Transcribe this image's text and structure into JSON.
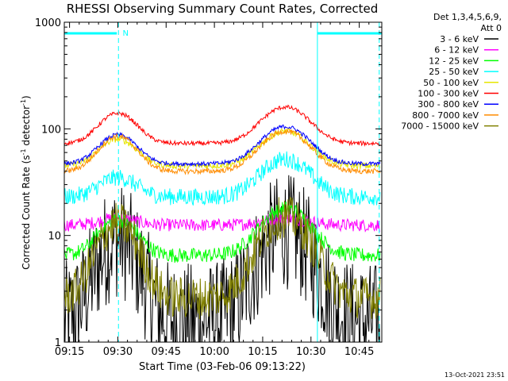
{
  "chart_data": {
    "type": "line",
    "title": "RHESSI Observing Summary Count Rates, Corrected",
    "xlabel": "Start Time (03-Feb-06 09:13:22)",
    "ylabel_main": "Corrected Count Rate (s",
    "ylabel_sup1": "-1",
    "ylabel_mid": " detector",
    "ylabel_sup2": "-1",
    "ylabel_end": ")",
    "yscale": "log",
    "ylim": [
      1,
      1000
    ],
    "xlim": [
      "09:13:22",
      "10:52:00"
    ],
    "x_ticks": [
      "09:15",
      "09:30",
      "09:45",
      "10:00",
      "10:15",
      "10:30",
      "10:45"
    ],
    "x_tick_minutes": [
      15,
      30,
      45,
      60,
      75,
      90,
      105
    ],
    "x_start_minute": 13.37,
    "x_end_minute": 112.0,
    "y_ticks": [
      {
        "value": 1,
        "label": "1"
      },
      {
        "value": 10,
        "label": "10"
      },
      {
        "value": 100,
        "label": "100"
      },
      {
        "value": 1000,
        "label": "1000"
      }
    ],
    "legend_header": [
      "Det 1,3,4,5,6,9,",
      "Att 0"
    ],
    "legend_placement": "right",
    "markers": {
      "night_bars": [
        {
          "start_minute": 13.37,
          "end_minute": 29.7
        },
        {
          "start_minute": 92.0,
          "end_minute": 112.0
        }
      ],
      "vlines_dashed": [
        30.2,
        111.2
      ],
      "vlines_solid": [
        13.37,
        92.0
      ],
      "labels": [
        {
          "text": "N",
          "minute": 31.5
        }
      ]
    },
    "series": [
      {
        "name": "3 - 6 keV",
        "color": "#000000",
        "base": 1.6,
        "peak1": 9,
        "peak2": 11,
        "noise": 0.55
      },
      {
        "name": "6 - 12 keV",
        "color": "#ff00ff",
        "base": 12.5,
        "peak1": 14.5,
        "peak2": 14.5,
        "noise": 0.06
      },
      {
        "name": "12 - 25 keV",
        "color": "#00ff00",
        "base": 6.5,
        "peak1": 14,
        "peak2": 18,
        "noise": 0.07
      },
      {
        "name": "25 - 50 keV",
        "color": "#00ffff",
        "base": 23,
        "peak1": 35,
        "peak2": 52,
        "noise": 0.08
      },
      {
        "name": "50 - 100 keV",
        "color": "#e6e600",
        "base": 45,
        "peak1": 80,
        "peak2": 95,
        "noise": 0.03
      },
      {
        "name": "100 - 300 keV",
        "color": "#ff0000",
        "base": 73,
        "peak1": 140,
        "peak2": 160,
        "noise": 0.02
      },
      {
        "name": "300 - 800 keV",
        "color": "#0000ff",
        "base": 47,
        "peak1": 88,
        "peak2": 105,
        "noise": 0.02
      },
      {
        "name": "800 - 7000 keV",
        "color": "#ff8c00",
        "base": 40,
        "peak1": 85,
        "peak2": 95,
        "noise": 0.025
      },
      {
        "name": "7000 - 15000 keV",
        "color": "#808000",
        "base": 2.6,
        "peak1": 13,
        "peak2": 15,
        "noise": 0.2
      }
    ]
  },
  "timestamp": "13-Oct-2021 23:51"
}
